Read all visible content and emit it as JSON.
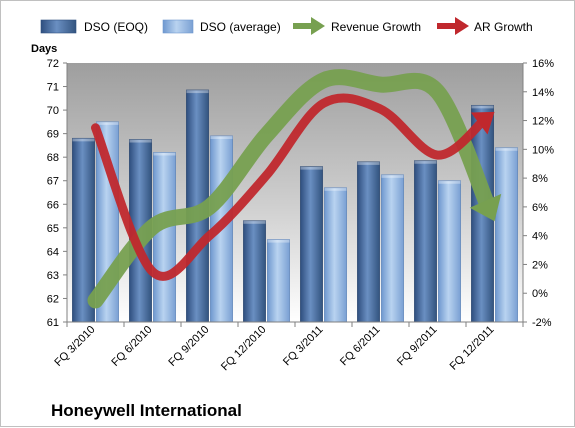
{
  "chart_data": {
    "type": "bar",
    "title": "Honeywell International",
    "ylabel": "Days",
    "categories": [
      "FQ 3/2010",
      "FQ 6/2010",
      "FQ 9/2010",
      "FQ 12/2010",
      "FQ 3/2011",
      "FQ 6/2011",
      "FQ 9/2011",
      "FQ 12/2011"
    ],
    "ylim": [
      61,
      72
    ],
    "yticks": [
      61,
      62,
      63,
      64,
      65,
      66,
      67,
      68,
      69,
      70,
      71,
      72
    ],
    "y2lim": [
      -2,
      16
    ],
    "y2ticks": [
      "-2%",
      "0%",
      "2%",
      "4%",
      "6%",
      "8%",
      "10%",
      "12%",
      "14%",
      "16%"
    ],
    "y2tick_values": [
      -2,
      0,
      2,
      4,
      6,
      8,
      10,
      12,
      14,
      16
    ],
    "legend_position": "top",
    "grid": false,
    "series": [
      {
        "name": "DSO (EOQ)",
        "kind": "bar",
        "axis": "left",
        "color": "#4a6fa5",
        "values": [
          68.8,
          68.75,
          70.85,
          65.3,
          67.6,
          67.8,
          67.85,
          70.2
        ]
      },
      {
        "name": "DSO (average)",
        "kind": "bar",
        "axis": "left",
        "color": "#8db4e2",
        "values": [
          69.5,
          68.2,
          68.9,
          64.5,
          66.7,
          67.25,
          67.0,
          68.4
        ]
      },
      {
        "name": "Revenue Growth",
        "kind": "arrow",
        "axis": "right",
        "color": "#77a050",
        "values": [
          -0.5,
          4.6,
          6.0,
          11.0,
          14.8,
          14.5,
          14.0,
          5.0
        ]
      },
      {
        "name": "AR Growth",
        "kind": "arrow",
        "axis": "right",
        "color": "#c0282d",
        "values": [
          11.5,
          1.5,
          4.0,
          8.2,
          13.2,
          12.8,
          9.6,
          12.6
        ]
      }
    ]
  }
}
